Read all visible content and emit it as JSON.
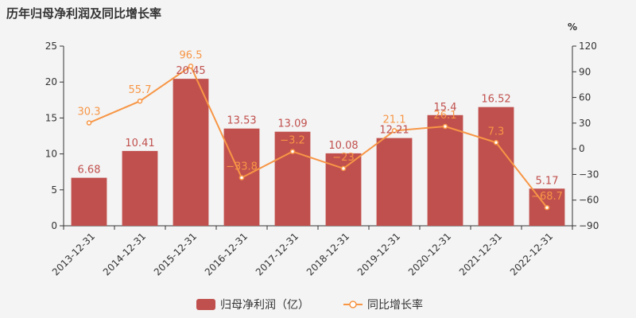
{
  "chart_data": {
    "type": "bar",
    "title": "历年归母净利润及同比增长率",
    "categories": [
      "2013-12-31",
      "2014-12-31",
      "2015-12-31",
      "2016-12-31",
      "2017-12-31",
      "2018-12-31",
      "2019-12-31",
      "2020-12-31",
      "2021-12-31",
      "2022-12-31"
    ],
    "series": [
      {
        "name": "归母净利润（亿）",
        "type": "bar",
        "axis": "left",
        "color": "#c0504d",
        "values": [
          6.68,
          10.41,
          20.45,
          13.53,
          13.09,
          10.08,
          12.21,
          15.4,
          16.52,
          5.17
        ],
        "labels": [
          "6.68",
          "10.41",
          "20.45",
          "13.53",
          "13.09",
          "10.08",
          "12.21",
          "15.4",
          "16.52",
          "5.17"
        ]
      },
      {
        "name": "同比增长率",
        "type": "line",
        "axis": "right",
        "color": "#f79646",
        "values": [
          30.3,
          55.7,
          96.5,
          -33.8,
          -3.2,
          -23,
          21.1,
          26.1,
          7.3,
          -68.7
        ],
        "labels": [
          "30.3",
          "55.7",
          "96.5",
          "−33.8",
          "−3.2",
          "−23",
          "21.1",
          "26.1",
          "7.3",
          "−68.7"
        ]
      }
    ],
    "y_left": {
      "ylim": [
        0,
        25
      ],
      "ticks": [
        "0",
        "5",
        "10",
        "15",
        "20",
        "25"
      ]
    },
    "y_right": {
      "ylim": [
        -90,
        120
      ],
      "unit": "%",
      "ticks": [
        "−90",
        "−60",
        "−30",
        "0",
        "30",
        "60",
        "90",
        "120"
      ]
    },
    "legend": "bottom-center"
  }
}
